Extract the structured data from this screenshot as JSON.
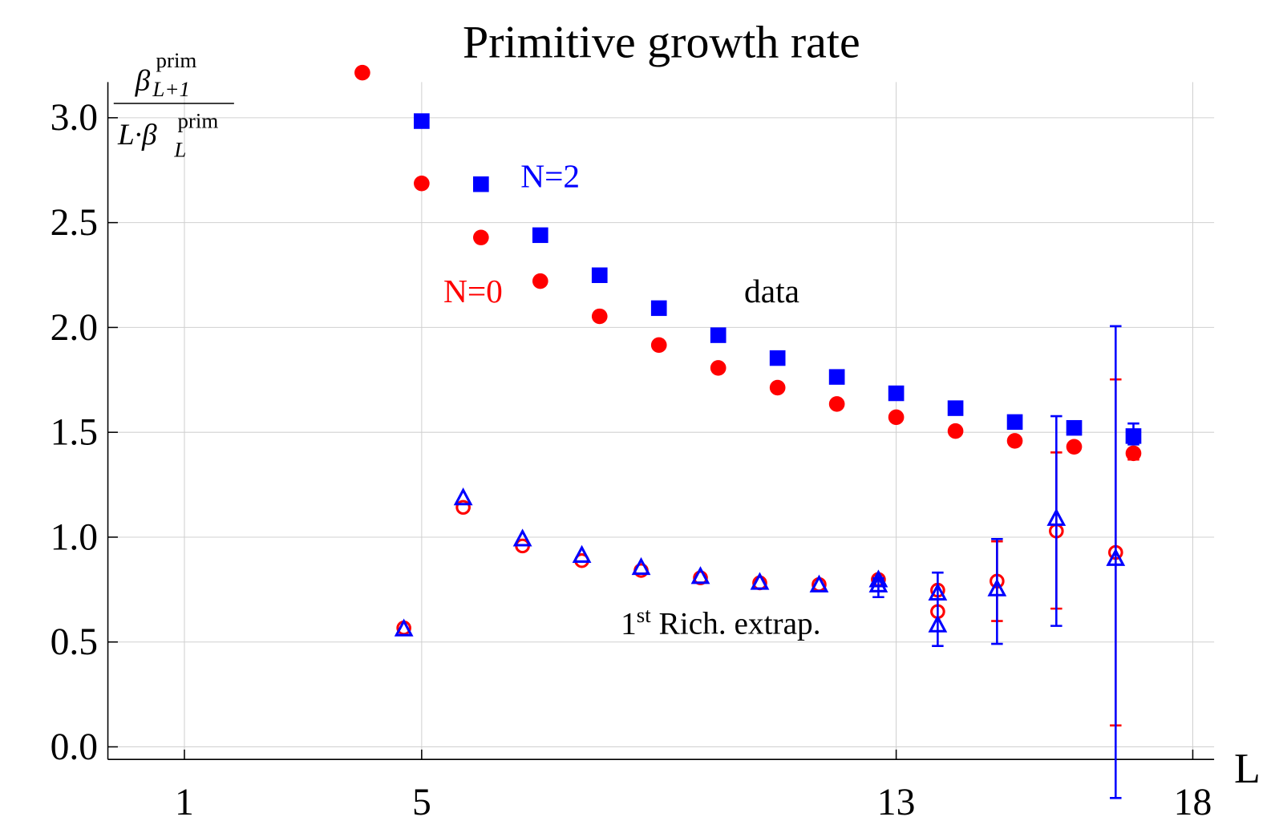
{
  "chart_data": {
    "type": "scatter",
    "title": "Primitive growth rate",
    "xlabel": "L",
    "ylabel": {
      "numerator": "β",
      "numerator_sup": "prim",
      "numerator_sub": "L+1",
      "denominator": "L·β",
      "denominator_sup": "prim",
      "denominator_sub": "L"
    },
    "xlim": [
      -0.29,
      18.36
    ],
    "ylim": [
      -0.06,
      3.17
    ],
    "xticks": [
      1,
      5,
      13,
      18
    ],
    "yticks": [
      {
        "value": 0,
        "label": "0.0"
      },
      {
        "value": 0.5,
        "label": "0.5"
      },
      {
        "value": 1,
        "label": "1.0"
      },
      {
        "value": 1.5,
        "label": "1.5"
      },
      {
        "value": 2,
        "label": "2.0"
      },
      {
        "value": 2.5,
        "label": "2.5"
      },
      {
        "value": 3,
        "label": "3.0"
      }
    ],
    "grid": true,
    "series": [
      {
        "color": "#ff0000",
        "marker": "circle",
        "filled": true,
        "x": [
          4,
          5,
          6,
          7,
          8,
          9,
          10,
          11,
          12,
          13,
          14,
          15,
          16,
          17
        ],
        "values": [
          3.215,
          2.687,
          2.429,
          2.221,
          2.053,
          1.916,
          1.807,
          1.713,
          1.635,
          1.572,
          1.506,
          1.459,
          1.431,
          1.4
        ],
        "yerr_minus": [
          null,
          null,
          null,
          null,
          null,
          null,
          null,
          null,
          null,
          null,
          null,
          null,
          null,
          0.03
        ],
        "yerr_plus": [
          null,
          null,
          null,
          null,
          null,
          null,
          null,
          null,
          null,
          null,
          null,
          null,
          null,
          0.02
        ]
      },
      {
        "color": "#0000ff",
        "marker": "square",
        "filled": true,
        "x": [
          5,
          6,
          7,
          8,
          9,
          10,
          11,
          12,
          13,
          14,
          15,
          16,
          17
        ],
        "values": [
          2.984,
          2.683,
          2.44,
          2.249,
          2.092,
          1.963,
          1.854,
          1.764,
          1.686,
          1.615,
          1.549,
          1.521,
          1.482
        ],
        "yerr_minus": [
          null,
          null,
          null,
          null,
          null,
          null,
          null,
          null,
          null,
          null,
          null,
          null,
          0.04
        ],
        "yerr_plus": [
          null,
          null,
          null,
          null,
          null,
          null,
          null,
          null,
          null,
          null,
          null,
          null,
          0.06
        ]
      },
      {
        "color": "#ff0000",
        "marker": "circle",
        "filled": false,
        "x": [
          4.7,
          5.7,
          6.7,
          7.7,
          8.7,
          9.7,
          10.7,
          11.7,
          12.7,
          13.7,
          13.7,
          14.7,
          15.7,
          16.7
        ],
        "values": [
          0.567,
          1.142,
          0.958,
          0.888,
          0.841,
          0.806,
          0.782,
          0.774,
          0.798,
          0.747,
          0.645,
          0.79,
          1.029,
          0.927
        ],
        "yerr_minus": [
          null,
          null,
          null,
          null,
          null,
          null,
          null,
          null,
          null,
          null,
          null,
          0.19,
          0.37,
          0.825
        ],
        "yerr_plus": [
          null,
          null,
          null,
          null,
          null,
          null,
          null,
          null,
          null,
          null,
          null,
          0.19,
          0.375,
          0.825
        ]
      },
      {
        "color": "#0000ff",
        "marker": "triangle",
        "filled": false,
        "x": [
          4.7,
          5.7,
          6.7,
          7.7,
          8.7,
          9.7,
          10.7,
          11.7,
          12.7,
          12.7,
          13.7,
          13.7,
          14.7,
          15.7,
          16.7
        ],
        "values": [
          0.56,
          1.185,
          0.989,
          0.911,
          0.853,
          0.81,
          0.782,
          0.77,
          0.794,
          0.77,
          0.731,
          0.579,
          0.751,
          1.087,
          0.896
        ],
        "yerr_minus": [
          null,
          null,
          null,
          null,
          null,
          null,
          null,
          null,
          0.08,
          null,
          0.25,
          null,
          0.26,
          0.51,
          1.14
        ],
        "yerr_plus": [
          null,
          null,
          null,
          null,
          null,
          null,
          null,
          null,
          0.01,
          null,
          0.1,
          null,
          0.24,
          0.49,
          1.11
        ]
      }
    ],
    "annotations": [
      {
        "text": "N=2",
        "color": "#0000ff"
      },
      {
        "text": "N=0",
        "color": "#ff0000"
      },
      {
        "text": "data",
        "color": "#000000"
      },
      {
        "text": "1",
        "sup": "st",
        "rest": " Rich. extrap.",
        "color": "#000000"
      }
    ]
  }
}
